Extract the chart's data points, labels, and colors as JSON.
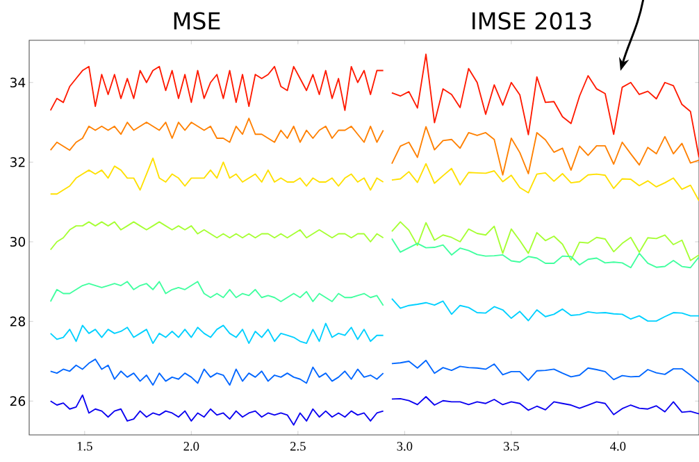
{
  "chart_data": {
    "type": "line",
    "annotations": [
      "MSE",
      "IMSE 2013"
    ],
    "x": [
      1.34,
      1.37,
      1.4,
      1.43,
      1.46,
      1.49,
      1.52,
      1.55,
      1.58,
      1.61,
      1.64,
      1.67,
      1.7,
      1.73,
      1.76,
      1.79,
      1.82,
      1.85,
      1.88,
      1.91,
      1.94,
      1.97,
      2.0,
      2.03,
      2.06,
      2.09,
      2.12,
      2.15,
      2.18,
      2.21,
      2.24,
      2.27,
      2.3,
      2.33,
      2.36,
      2.39,
      2.42,
      2.45,
      2.48,
      2.51,
      2.54,
      2.57,
      2.6,
      2.63,
      2.66,
      2.69,
      2.72,
      2.75,
      2.78,
      2.81,
      2.84,
      2.87,
      2.9,
      2.92,
      2.94,
      2.98,
      3.02,
      3.06,
      3.1,
      3.14,
      3.18,
      3.22,
      3.26,
      3.3,
      3.34,
      3.38,
      3.42,
      3.46,
      3.5,
      3.54,
      3.58,
      3.62,
      3.66,
      3.7,
      3.74,
      3.78,
      3.82,
      3.86,
      3.9,
      3.94,
      3.98,
      4.02,
      4.06,
      4.1,
      4.14,
      4.18,
      4.22,
      4.26,
      4.3,
      4.34,
      4.38
    ],
    "xlim": [
      1.24,
      4.38
    ],
    "ylim": [
      25.15,
      35.06
    ],
    "xticks": [
      1.5,
      {
        "value": 2,
        "label": "2.0"
      },
      2.5,
      {
        "value": 3,
        "label": "3.0"
      },
      3.5,
      {
        "value": 4,
        "label": "4.0"
      }
    ],
    "yticks": [
      26,
      28,
      30,
      32,
      34
    ],
    "series": [
      {
        "color": "#ff1a00",
        "values": [
          33.3,
          33.6,
          33.5,
          33.9,
          34.1,
          34.3,
          34.4,
          33.4,
          34.2,
          33.7,
          34.2,
          33.6,
          34.1,
          33.6,
          34.3,
          34.0,
          34.3,
          34.4,
          33.8,
          34.3,
          33.6,
          34.2,
          33.5,
          34.3,
          33.6,
          34.0,
          34.2,
          33.6,
          34.3,
          33.5,
          34.2,
          33.4,
          34.2,
          34.1,
          34.2,
          34.4,
          33.9,
          33.8,
          34.4,
          34.1,
          33.8,
          34.2,
          33.7,
          34.3,
          33.6,
          34.1,
          33.3,
          34.4,
          34.0,
          34.3,
          33.7,
          34.3,
          34.3,
          null,
          33.74,
          33.66,
          33.77,
          33.36,
          34.71,
          32.99,
          33.84,
          33.7,
          33.37,
          34.35,
          34.0,
          33.2,
          33.94,
          33.43,
          34.0,
          33.69,
          32.69,
          34.14,
          33.5,
          33.52,
          33.14,
          32.97,
          33.66,
          34.17,
          33.84,
          33.72,
          32.7,
          33.88,
          34.0,
          33.7,
          33.78,
          33.59,
          34.0,
          33.92,
          33.45,
          33.27,
          32.12
        ]
      },
      {
        "color": "#ff8000",
        "values": [
          32.3,
          32.5,
          32.4,
          32.3,
          32.5,
          32.6,
          32.9,
          32.8,
          32.9,
          32.8,
          32.9,
          32.7,
          33.0,
          32.8,
          32.9,
          33.0,
          32.9,
          32.8,
          33.0,
          32.6,
          33.0,
          32.8,
          33.0,
          32.9,
          32.8,
          32.9,
          32.6,
          32.6,
          32.5,
          32.9,
          32.7,
          33.1,
          32.7,
          32.7,
          32.6,
          32.5,
          32.8,
          32.6,
          32.9,
          32.5,
          32.8,
          32.6,
          32.8,
          32.9,
          32.6,
          32.8,
          32.8,
          32.9,
          32.7,
          32.5,
          32.9,
          32.5,
          32.8,
          null,
          31.96,
          32.4,
          32.5,
          32.12,
          32.89,
          32.31,
          32.54,
          32.57,
          32.35,
          32.74,
          32.67,
          32.74,
          32.57,
          31.68,
          32.6,
          32.24,
          31.71,
          32.74,
          32.56,
          32.25,
          32.35,
          31.8,
          32.4,
          32.17,
          32.41,
          32.41,
          31.95,
          32.5,
          32.21,
          31.93,
          32.37,
          32.21,
          32.64,
          32.21,
          32.47,
          31.98,
          32.05
        ]
      },
      {
        "color": "#ffe000",
        "values": [
          31.2,
          31.2,
          31.3,
          31.4,
          31.6,
          31.7,
          31.8,
          31.7,
          31.8,
          31.6,
          31.9,
          31.8,
          31.6,
          31.6,
          31.3,
          31.7,
          32.1,
          31.6,
          31.5,
          31.7,
          31.6,
          31.4,
          31.6,
          31.6,
          31.6,
          31.8,
          31.6,
          32.0,
          31.6,
          31.7,
          31.5,
          31.6,
          31.7,
          31.5,
          31.8,
          31.5,
          31.6,
          31.5,
          31.5,
          31.6,
          31.4,
          31.6,
          31.5,
          31.5,
          31.6,
          31.4,
          31.6,
          31.7,
          31.5,
          31.6,
          31.3,
          31.6,
          31.5,
          null,
          31.55,
          31.58,
          31.76,
          31.49,
          31.96,
          31.47,
          31.66,
          31.84,
          31.43,
          31.74,
          31.73,
          31.72,
          31.78,
          31.51,
          31.67,
          31.36,
          31.23,
          31.7,
          31.73,
          31.52,
          31.71,
          31.48,
          31.51,
          31.68,
          31.7,
          31.67,
          31.34,
          31.58,
          31.57,
          31.41,
          31.53,
          31.38,
          31.48,
          31.6,
          31.32,
          31.42,
          31.03
        ]
      },
      {
        "color": "#a6ff33",
        "values": [
          29.8,
          30.0,
          30.1,
          30.3,
          30.4,
          30.4,
          30.5,
          30.4,
          30.5,
          30.4,
          30.5,
          30.3,
          30.4,
          30.5,
          30.4,
          30.3,
          30.4,
          30.5,
          30.4,
          30.3,
          30.4,
          30.3,
          30.4,
          30.2,
          30.3,
          30.2,
          30.1,
          30.2,
          30.1,
          30.2,
          30.1,
          30.2,
          30.1,
          30.2,
          30.2,
          30.1,
          30.2,
          30.1,
          30.2,
          30.3,
          30.1,
          30.2,
          30.3,
          30.2,
          30.1,
          30.2,
          30.2,
          30.1,
          30.2,
          30.2,
          30.0,
          30.2,
          30.1,
          null,
          30.26,
          30.5,
          30.29,
          29.91,
          30.48,
          30.04,
          30.17,
          30.11,
          30.0,
          30.32,
          30.21,
          30.17,
          30.39,
          29.71,
          30.32,
          30.03,
          29.71,
          30.23,
          30.03,
          30.14,
          29.94,
          29.54,
          29.99,
          29.97,
          30.11,
          30.07,
          29.75,
          29.96,
          30.11,
          29.74,
          30.1,
          30.08,
          30.17,
          29.93,
          30.04,
          29.53,
          29.67
        ]
      },
      {
        "color": "#40ff9f",
        "values": [
          28.5,
          28.8,
          28.7,
          28.7,
          28.8,
          28.9,
          28.95,
          28.9,
          28.85,
          28.9,
          28.95,
          28.9,
          29.0,
          28.8,
          28.9,
          28.95,
          28.8,
          29.0,
          28.7,
          28.8,
          28.85,
          28.8,
          28.9,
          29.0,
          28.7,
          28.6,
          28.7,
          28.6,
          28.8,
          28.6,
          28.7,
          28.65,
          28.8,
          28.6,
          28.65,
          28.6,
          28.5,
          28.6,
          28.7,
          28.6,
          28.75,
          28.5,
          28.7,
          28.6,
          28.5,
          28.7,
          28.6,
          28.6,
          28.65,
          28.7,
          28.6,
          28.65,
          28.4,
          null,
          30.08,
          29.74,
          29.85,
          29.96,
          29.85,
          29.86,
          29.92,
          29.67,
          29.84,
          29.78,
          29.68,
          29.64,
          29.65,
          29.67,
          29.52,
          29.49,
          29.63,
          29.59,
          29.46,
          29.46,
          29.64,
          29.63,
          29.42,
          29.56,
          29.59,
          29.47,
          29.49,
          29.47,
          29.35,
          29.71,
          29.46,
          29.36,
          29.38,
          29.53,
          29.38,
          29.35,
          29.62
        ]
      },
      {
        "color": "#00d0ff",
        "values": [
          27.7,
          27.55,
          27.6,
          27.8,
          27.5,
          27.9,
          27.7,
          27.8,
          27.6,
          27.8,
          27.7,
          27.75,
          27.85,
          27.6,
          27.7,
          27.8,
          27.45,
          27.7,
          27.6,
          27.75,
          27.6,
          27.8,
          27.6,
          27.85,
          27.7,
          27.6,
          27.8,
          27.9,
          27.7,
          27.6,
          27.8,
          27.45,
          27.75,
          27.6,
          27.8,
          27.5,
          27.7,
          27.65,
          27.6,
          27.5,
          27.45,
          27.8,
          27.5,
          27.95,
          27.6,
          27.7,
          27.65,
          27.85,
          27.55,
          27.8,
          27.5,
          27.65,
          27.65,
          null,
          28.57,
          28.33,
          28.4,
          28.43,
          28.47,
          28.41,
          28.51,
          28.18,
          28.4,
          28.35,
          28.22,
          28.21,
          28.37,
          28.29,
          28.08,
          28.25,
          28.02,
          28.29,
          28.12,
          28.18,
          28.31,
          28.15,
          28.17,
          28.24,
          28.21,
          28.22,
          28.19,
          28.18,
          28.06,
          28.14,
          28.01,
          28.01,
          28.12,
          28.22,
          28.21,
          28.14,
          28.14
        ]
      },
      {
        "color": "#0066ff",
        "values": [
          26.75,
          26.7,
          26.8,
          26.75,
          26.9,
          26.8,
          26.95,
          27.05,
          26.8,
          26.9,
          26.55,
          26.75,
          26.6,
          26.7,
          26.5,
          26.65,
          26.4,
          26.7,
          26.5,
          26.6,
          26.55,
          26.7,
          26.6,
          26.45,
          26.8,
          26.6,
          26.7,
          26.65,
          26.4,
          26.8,
          26.5,
          26.7,
          26.6,
          26.75,
          26.5,
          26.65,
          26.6,
          26.7,
          26.6,
          26.55,
          26.45,
          26.85,
          26.6,
          26.7,
          26.5,
          26.6,
          26.75,
          26.55,
          26.8,
          26.6,
          26.65,
          26.55,
          26.7,
          null,
          26.94,
          26.96,
          27.0,
          26.83,
          27.02,
          26.7,
          26.84,
          26.77,
          26.87,
          26.84,
          26.83,
          26.8,
          26.93,
          26.66,
          26.74,
          26.74,
          26.52,
          26.76,
          26.77,
          26.8,
          26.7,
          26.61,
          26.65,
          26.83,
          26.79,
          26.74,
          26.54,
          26.64,
          26.61,
          26.62,
          26.79,
          26.71,
          26.67,
          26.81,
          26.81,
          26.65,
          26.47
        ]
      },
      {
        "color": "#0a00f0",
        "values": [
          26.0,
          25.9,
          25.95,
          25.8,
          25.85,
          26.15,
          25.7,
          25.8,
          25.75,
          25.6,
          25.75,
          25.8,
          25.5,
          25.55,
          25.75,
          25.6,
          25.7,
          25.65,
          25.75,
          25.7,
          25.6,
          25.75,
          25.5,
          25.7,
          25.6,
          25.8,
          25.65,
          25.7,
          25.55,
          25.75,
          25.6,
          25.7,
          25.75,
          25.6,
          25.7,
          25.65,
          25.7,
          25.65,
          25.4,
          25.7,
          25.5,
          25.8,
          25.6,
          25.75,
          25.6,
          25.7,
          25.6,
          25.75,
          25.65,
          25.7,
          25.5,
          25.7,
          25.75,
          null,
          26.05,
          26.06,
          26.01,
          25.91,
          26.11,
          25.9,
          26.01,
          25.98,
          25.98,
          25.91,
          25.98,
          25.94,
          26.04,
          25.91,
          25.98,
          25.94,
          25.77,
          25.87,
          25.78,
          25.98,
          25.94,
          25.9,
          25.82,
          25.9,
          25.98,
          25.94,
          25.66,
          25.81,
          25.9,
          25.82,
          25.8,
          25.88,
          25.73,
          25.98,
          25.72,
          25.74,
          25.68
        ]
      }
    ]
  }
}
